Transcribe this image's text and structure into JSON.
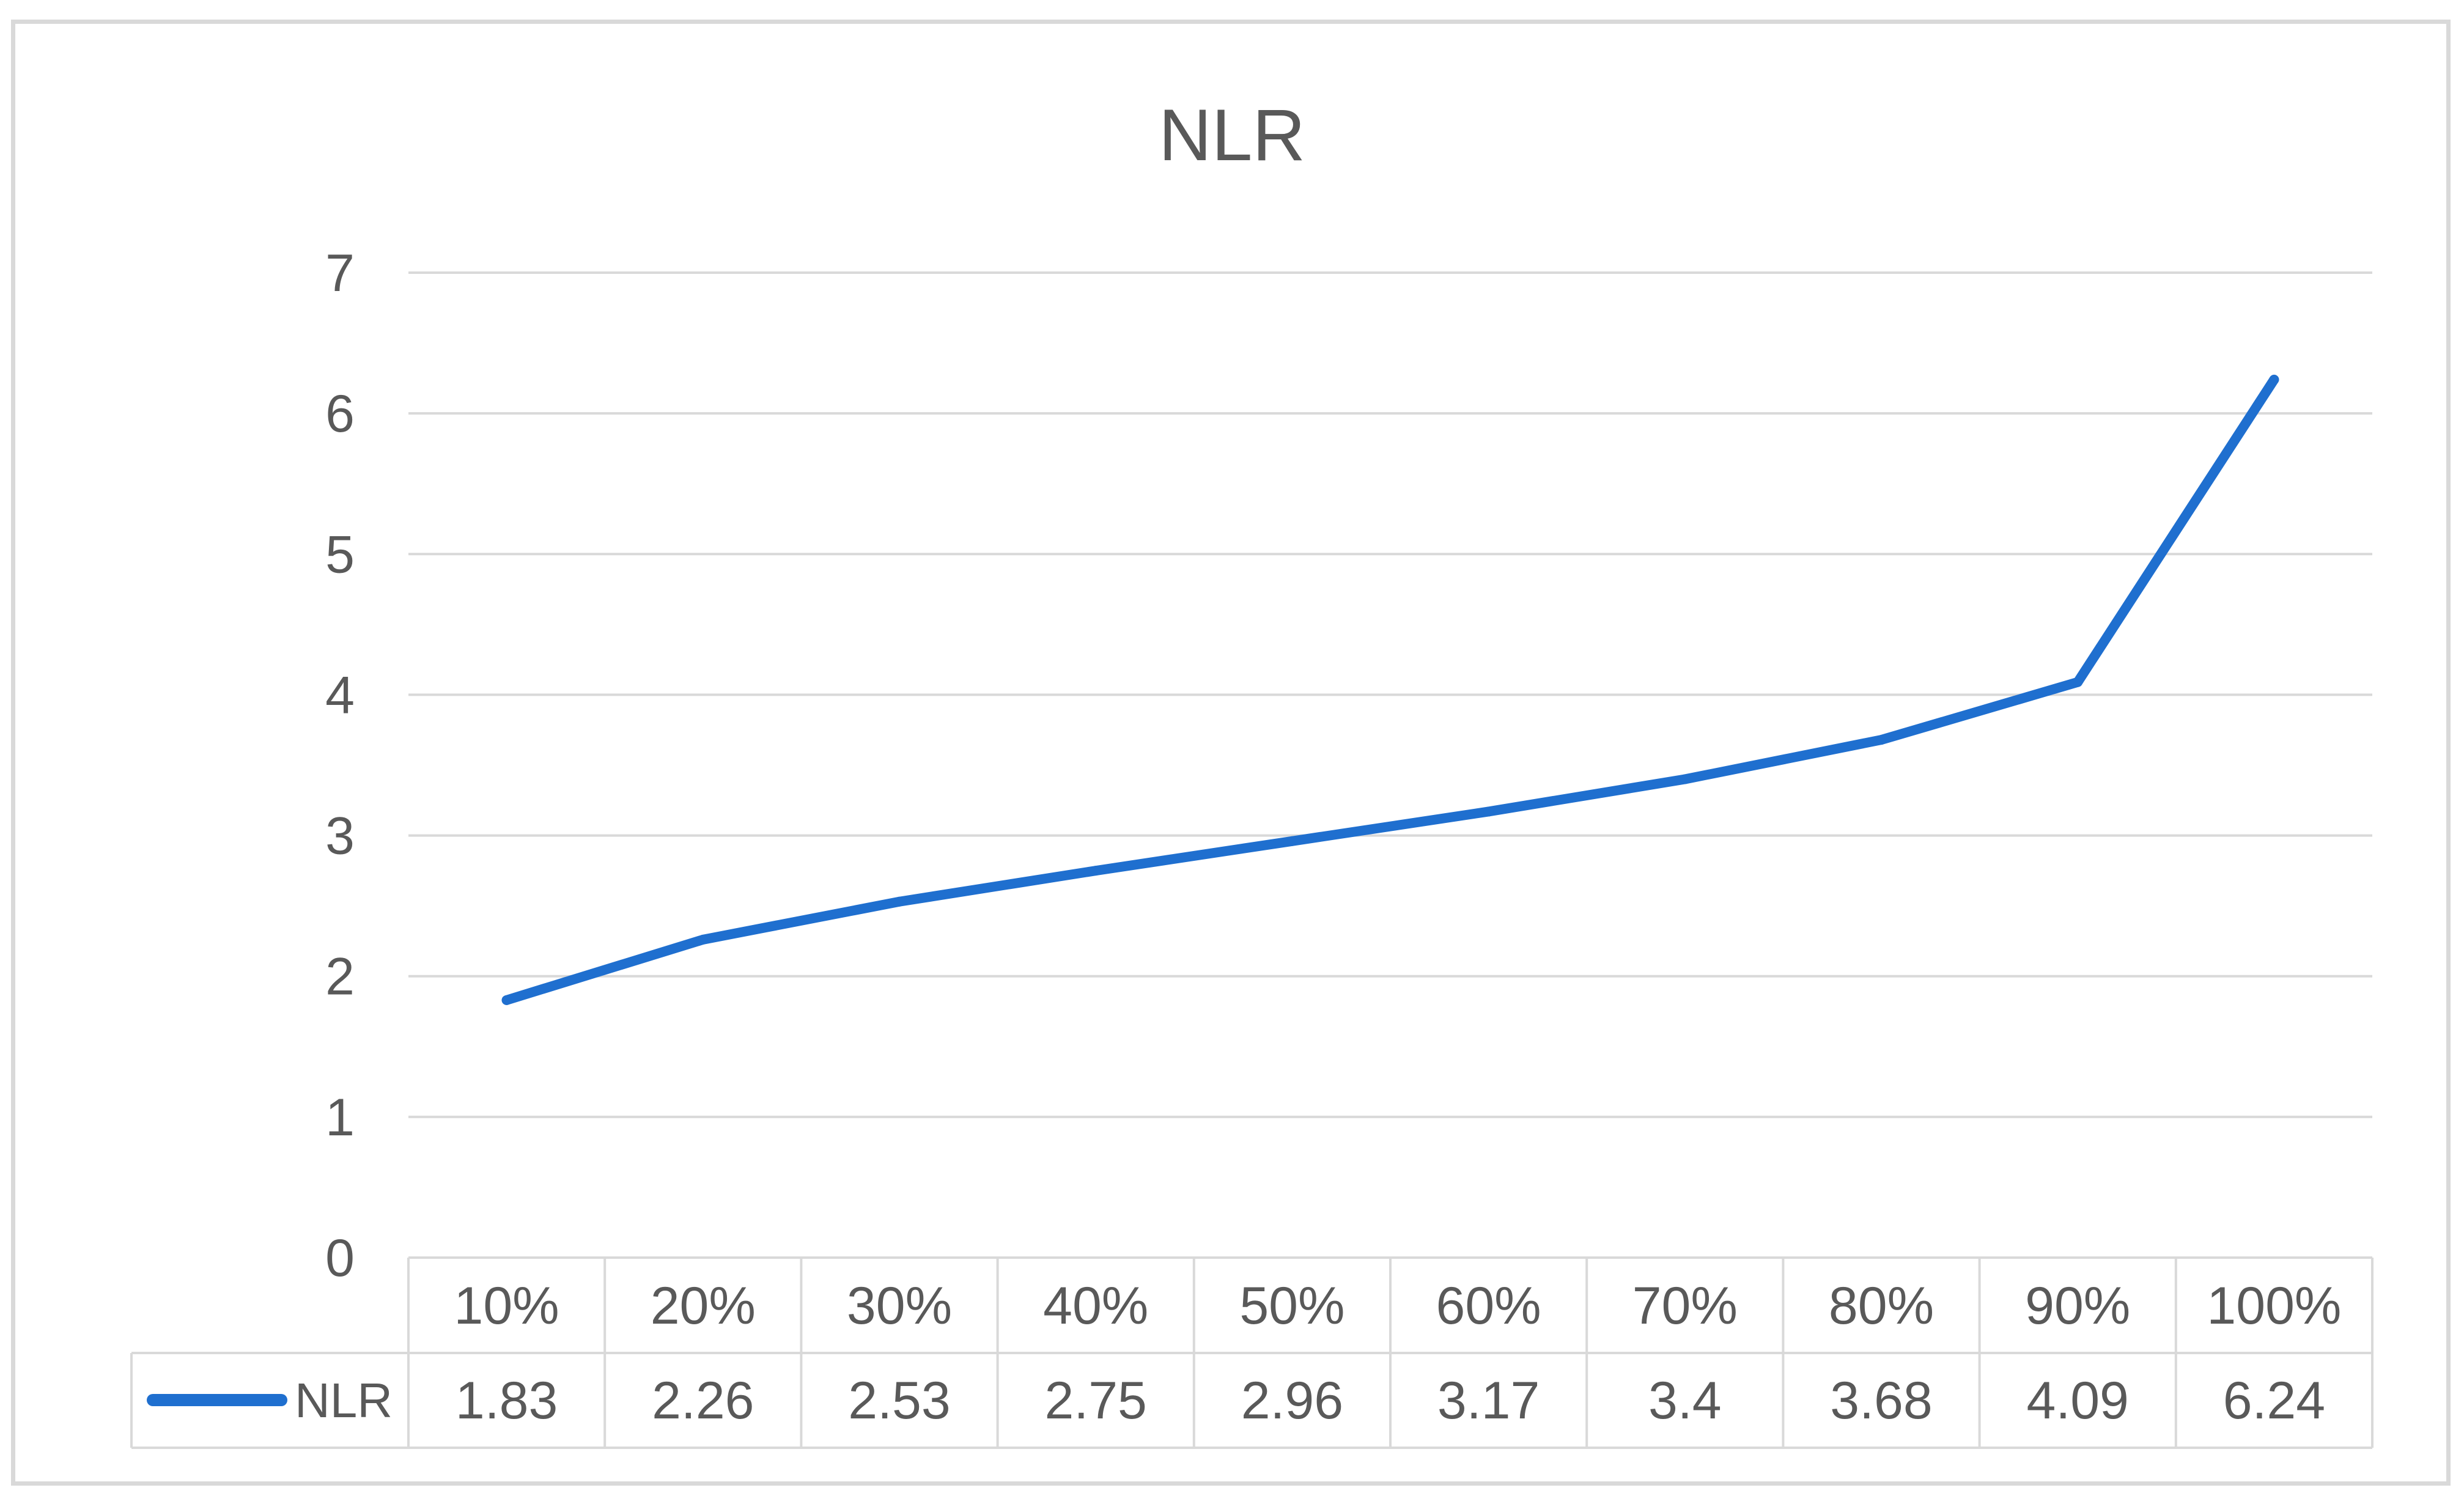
{
  "chart_data": {
    "type": "line",
    "title": "NLR",
    "categories": [
      "10%",
      "20%",
      "30%",
      "40%",
      "50%",
      "60%",
      "70%",
      "80%",
      "90%",
      "100%"
    ],
    "series": [
      {
        "name": "NLR",
        "values": [
          1.83,
          2.26,
          2.53,
          2.75,
          2.96,
          3.17,
          3.4,
          3.68,
          4.09,
          6.24
        ],
        "value_labels": [
          "1.83",
          "2.26",
          "2.53",
          "2.75",
          "2.96",
          "3.17",
          "3.4",
          "3.68",
          "4.09",
          "6.24"
        ],
        "color": "#1f6fcf"
      }
    ],
    "yticks": [
      "0",
      "1",
      "2",
      "3",
      "4",
      "5",
      "6",
      "7"
    ],
    "ylim": [
      0,
      7
    ],
    "grid": true,
    "legend": "data-table",
    "colors": {
      "gridline": "#d9d9d9",
      "text": "#595959",
      "table_border": "#d9d9d9",
      "frame": "#d9d9d9"
    }
  }
}
